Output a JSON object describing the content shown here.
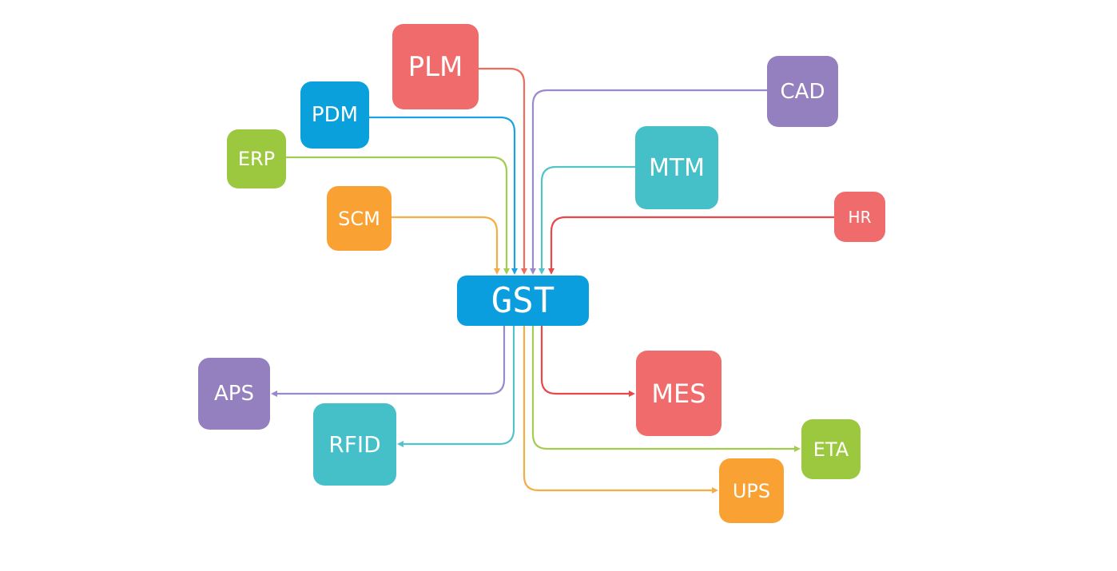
{
  "hub": {
    "label": "GST",
    "color": "#0b9ede"
  },
  "inputs": [
    {
      "label": "PLM",
      "color": "#f06c6c",
      "line": "#ef6b5b"
    },
    {
      "label": "PDM",
      "color": "#0aa0dc",
      "line": "#1aa3e0"
    },
    {
      "label": "ERP",
      "color": "#9cc840",
      "line": "#a4cc50"
    },
    {
      "label": "SCM",
      "color": "#f9a233",
      "line": "#f7ad45"
    },
    {
      "label": "CAD",
      "color": "#9580bf",
      "line": "#9b8acb"
    },
    {
      "label": "MTM",
      "color": "#45c0c8",
      "line": "#52c3c8"
    },
    {
      "label": "HR",
      "color": "#f06c6c",
      "line": "#e84848"
    }
  ],
  "outputs": [
    {
      "label": "APS",
      "color": "#9580bf",
      "line": "#9b8acb"
    },
    {
      "label": "RFID",
      "color": "#45c0c8",
      "line": "#52c3c8"
    },
    {
      "label": "MES",
      "color": "#f06c6c",
      "line": "#e84848"
    },
    {
      "label": "ETA",
      "color": "#9cc840",
      "line": "#a4cc50"
    },
    {
      "label": "UPS",
      "color": "#f9a233",
      "line": "#f7ad45"
    }
  ]
}
